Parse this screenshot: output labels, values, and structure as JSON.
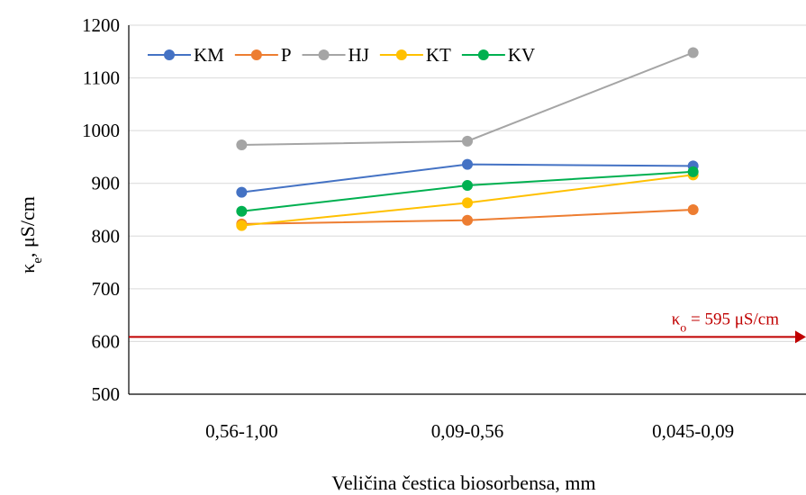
{
  "chart_data": {
    "type": "line",
    "title": "",
    "xlabel": "Veličina čestica biosorbensa, mm",
    "ylabel": {
      "base": "κ",
      "sub": "e",
      "rest": ", μS/cm"
    },
    "ylim": [
      500,
      1200
    ],
    "yticks": [
      "500",
      "600",
      "700",
      "800",
      "900",
      "1000",
      "1100",
      "1200"
    ],
    "categories": [
      "0,56-1,00",
      "0,09-0,56",
      "0,045-0,09"
    ],
    "grid": true,
    "legend_position": "top-left",
    "series": [
      {
        "name": "KM",
        "color": "#4472C4",
        "values": [
          883,
          936,
          933
        ]
      },
      {
        "name": "P",
        "color": "#ED7D31",
        "values": [
          823,
          830,
          850
        ]
      },
      {
        "name": "HJ",
        "color": "#A5A5A5",
        "values": [
          973,
          980,
          1148
        ]
      },
      {
        "name": "KT",
        "color": "#FFC000",
        "values": [
          820,
          863,
          916
        ]
      },
      {
        "name": "KV",
        "color": "#00B050",
        "values": [
          847,
          896,
          922
        ]
      }
    ],
    "reference_line": {
      "value": 595,
      "color": "#C00000",
      "label": {
        "base": "κ",
        "sub": "o",
        "rest": " = 595  μS/cm"
      }
    }
  }
}
